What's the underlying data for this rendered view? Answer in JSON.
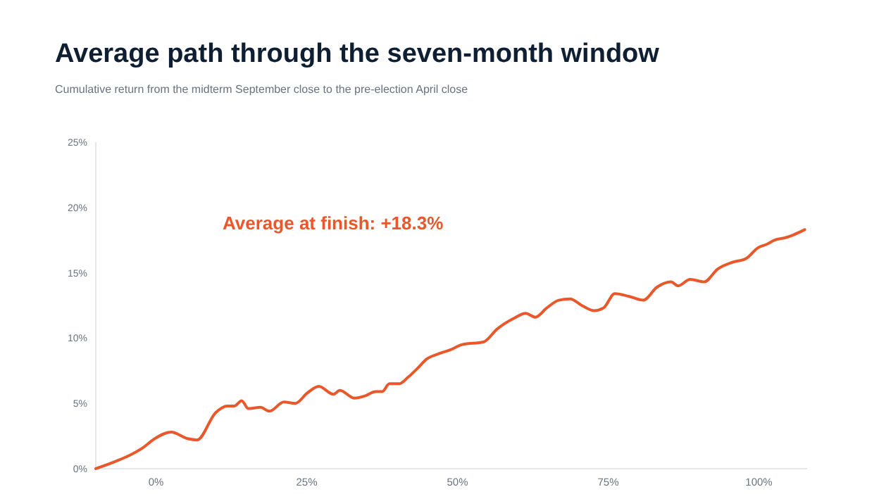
{
  "chart_data": {
    "type": "line",
    "title": "Average path through the seven-month window",
    "subtitle": "Cumulative return from the midterm September close to the pre-election April close",
    "annotations": [
      "Average at finish: +18.3%"
    ],
    "series": [
      {
        "color": "#e8582a",
        "x": [
          -10,
          -6.5,
          -4.5,
          -2.2,
          -0.2,
          2.5,
          5.2,
          6.8,
          9.9,
          11.8,
          13,
          14.2,
          15.3,
          17.3,
          18.8,
          21.2,
          23.1,
          25.1,
          27,
          29.4,
          30.5,
          32.9,
          34.8,
          36.4,
          37.5,
          38.7,
          40.3,
          41.8,
          43.4,
          44.9,
          46.9,
          48.8,
          50.8,
          54.3,
          56.6,
          59.3,
          61.3,
          62.9,
          64.8,
          66.8,
          68.7,
          70.6,
          72.6,
          74.2,
          76.1,
          78.4,
          80.8,
          83.1,
          85.4,
          86.6,
          88.6,
          90.9,
          93.2,
          95.6,
          97.9,
          99.8,
          101.4,
          102.6,
          104.5,
          105.7,
          107.6
        ],
        "values": [
          0,
          0.6,
          1.0,
          1.6,
          2.3,
          2.8,
          2.3,
          2.2,
          4.3,
          4.8,
          4.8,
          5.2,
          4.6,
          4.7,
          4.4,
          5.1,
          5.0,
          5.8,
          6.3,
          5.7,
          6.0,
          5.4,
          5.6,
          5.9,
          5.9,
          6.5,
          6.5,
          7.0,
          7.7,
          8.4,
          8.8,
          9.1,
          9.5,
          9.7,
          10.7,
          11.5,
          11.9,
          11.6,
          12.3,
          12.9,
          13.0,
          12.5,
          12.1,
          12.3,
          13.4,
          13.2,
          12.9,
          13.9,
          14.3,
          14.0,
          14.5,
          14.3,
          15.3,
          15.8,
          16.1,
          16.9,
          17.2,
          17.5,
          17.7,
          17.9,
          18.3
        ]
      }
    ],
    "xlim": [
      -10,
      108
    ],
    "xticks": [
      {
        "value": 0,
        "label": "0%"
      },
      {
        "value": 25,
        "label": "25%"
      },
      {
        "value": 50,
        "label": "50%"
      },
      {
        "value": 75,
        "label": "75%"
      },
      {
        "value": 100,
        "label": "100%"
      }
    ],
    "ylim": [
      0,
      25
    ],
    "yticks": [
      {
        "value": 0,
        "label": "0%"
      },
      {
        "value": 5,
        "label": "5%"
      },
      {
        "value": 10,
        "label": "10%"
      },
      {
        "value": 15,
        "label": "15%"
      },
      {
        "value": 20,
        "label": "20%"
      },
      {
        "value": 25,
        "label": "25%"
      }
    ],
    "grid": false
  }
}
